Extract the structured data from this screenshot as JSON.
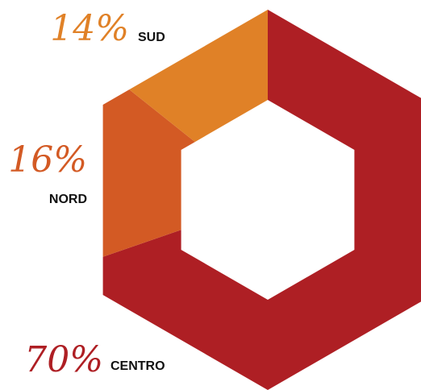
{
  "chart_data": {
    "type": "pie",
    "style": "hexagonal-donut",
    "title": "",
    "legend": "none",
    "slices": [
      {
        "label": "SUD",
        "percent_label": "14%",
        "value": 14,
        "color": "#E08127"
      },
      {
        "label": "NORD",
        "percent_label": "16%",
        "value": 16,
        "color": "#D35A24"
      },
      {
        "label": "CENTRO",
        "percent_label": "70%",
        "value": 70,
        "color": "#AE1F24"
      }
    ]
  }
}
